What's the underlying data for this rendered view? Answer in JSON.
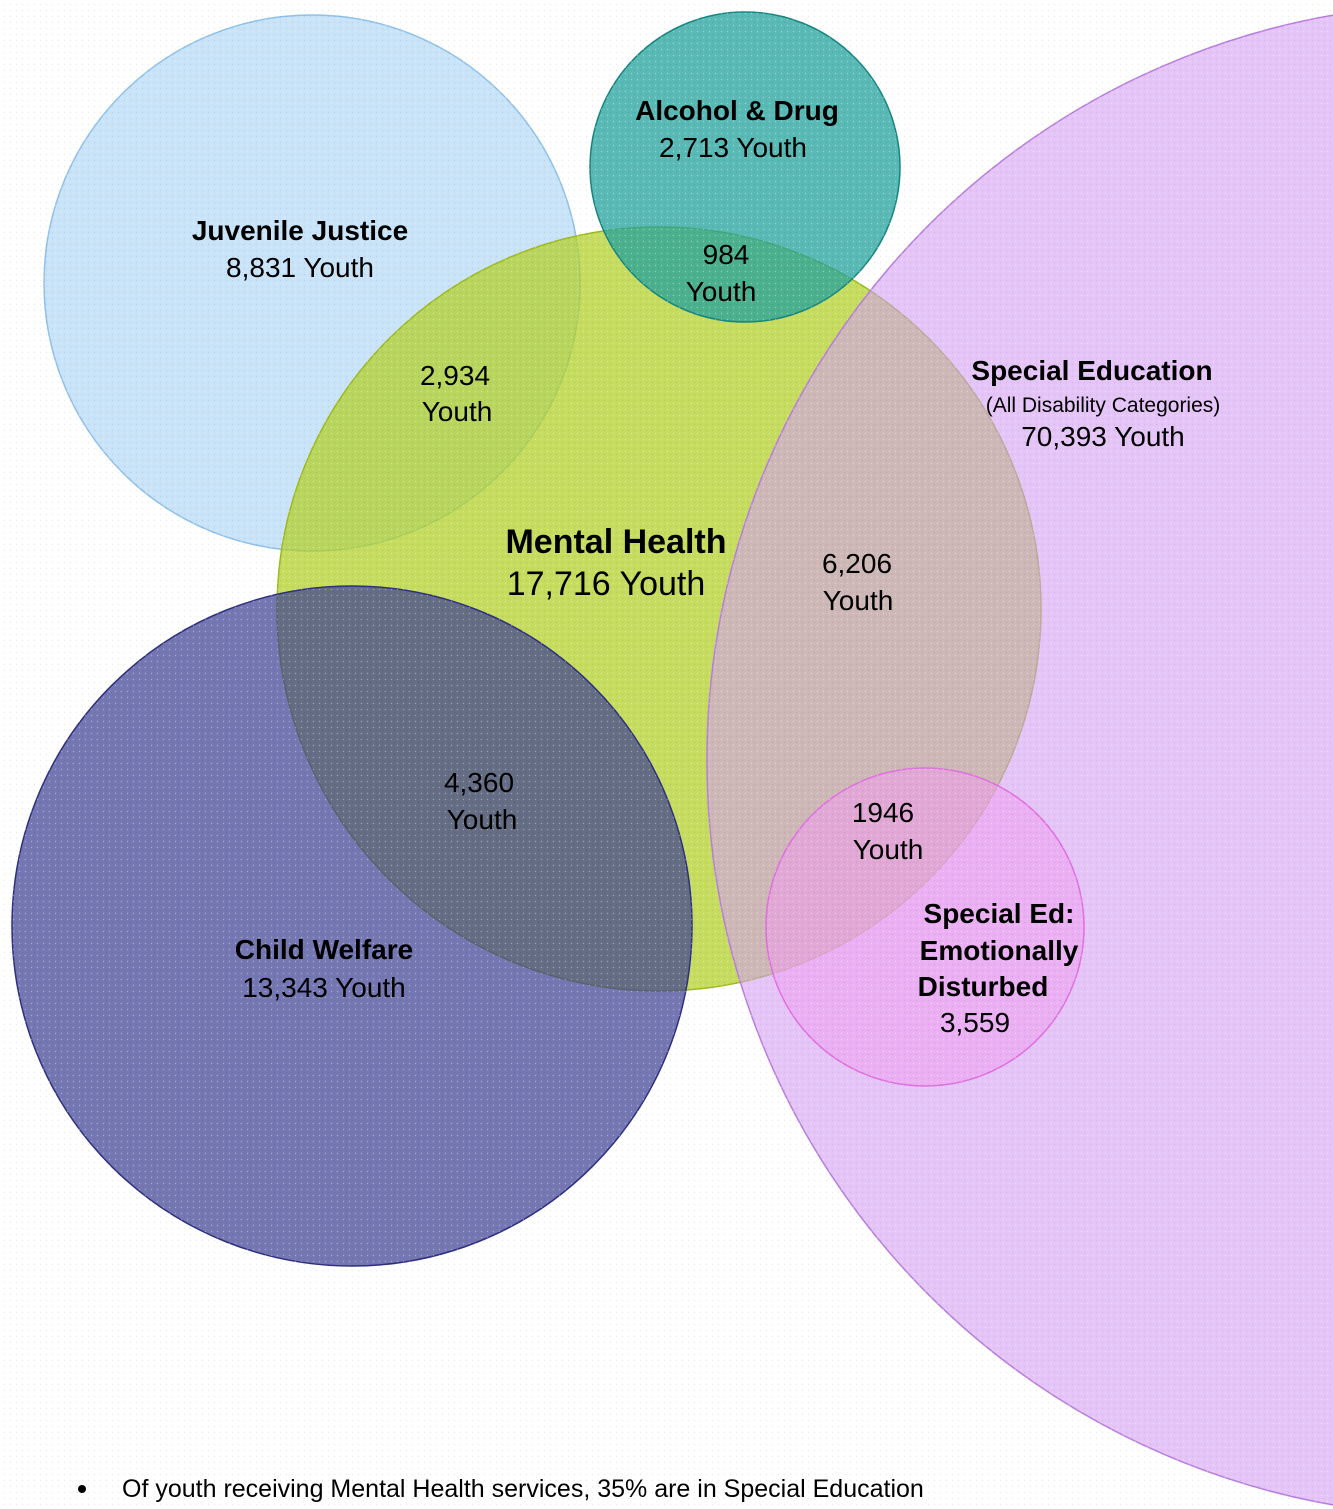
{
  "circles": [
    {
      "title": [
        "Juvenile Justice"
      ],
      "count": "8,831 Youth"
    },
    {
      "title": [
        "Alcohol & Drug"
      ],
      "count": "2,713 Youth"
    },
    {
      "title": [
        "Mental Health"
      ],
      "count": "17,716 Youth"
    },
    {
      "title": [
        "Child Welfare"
      ],
      "count": "13,343 Youth"
    },
    {
      "title": [
        "Special Education"
      ],
      "subtitle": "(All Disability Categories)",
      "count": "70,393 Youth"
    },
    {
      "title": [
        "Special Ed:",
        "Emotionally",
        "Disturbed"
      ],
      "count": "3,559"
    }
  ],
  "overlaps": [
    {
      "value": "984",
      "unit": "Youth"
    },
    {
      "value": "2,934",
      "unit": "Youth"
    },
    {
      "value": "6,206",
      "unit": "Youth"
    },
    {
      "value": "4,360",
      "unit": "Youth"
    },
    {
      "value": "1946",
      "unit": "Youth"
    }
  ],
  "notes": [
    "Of youth receiving Mental Health services, 35% are in Special Education"
  ]
}
